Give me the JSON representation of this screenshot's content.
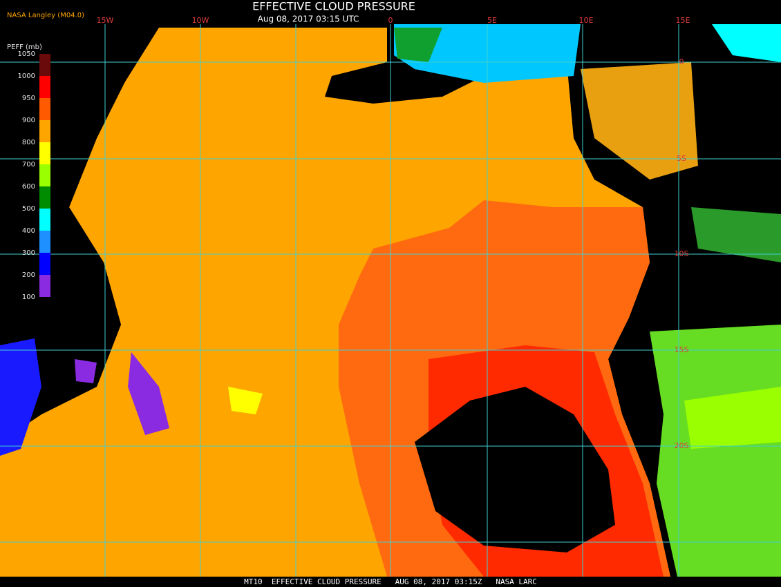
{
  "header": {
    "title": "EFFECTIVE CLOUD PRESSURE",
    "subtitle": "Aug 08, 2017 03:15 UTC",
    "source": "NASA Langley (M04.0)"
  },
  "longitude_labels": [
    "15W",
    "10W",
    "0",
    "5E",
    "10E",
    "15E"
  ],
  "latitude_labels": [
    "0",
    "5S",
    "10S",
    "15S",
    "20S"
  ],
  "legend": {
    "title": "PEFF (mb)",
    "ticks": [
      1050,
      1000,
      950,
      900,
      800,
      700,
      600,
      500,
      400,
      300,
      200,
      100
    ],
    "colors": [
      "#6b0a0a",
      "#ff0000",
      "#ff5a00",
      "#ffa500",
      "#ffff00",
      "#9aff00",
      "#008c00",
      "#00ffff",
      "#1e90ff",
      "#0000ff",
      "#8a2be2"
    ]
  },
  "footer": "MT10  EFFECTIVE CLOUD PRESSURE   AUG 08, 2017 03:15Z   NASA LARC"
}
